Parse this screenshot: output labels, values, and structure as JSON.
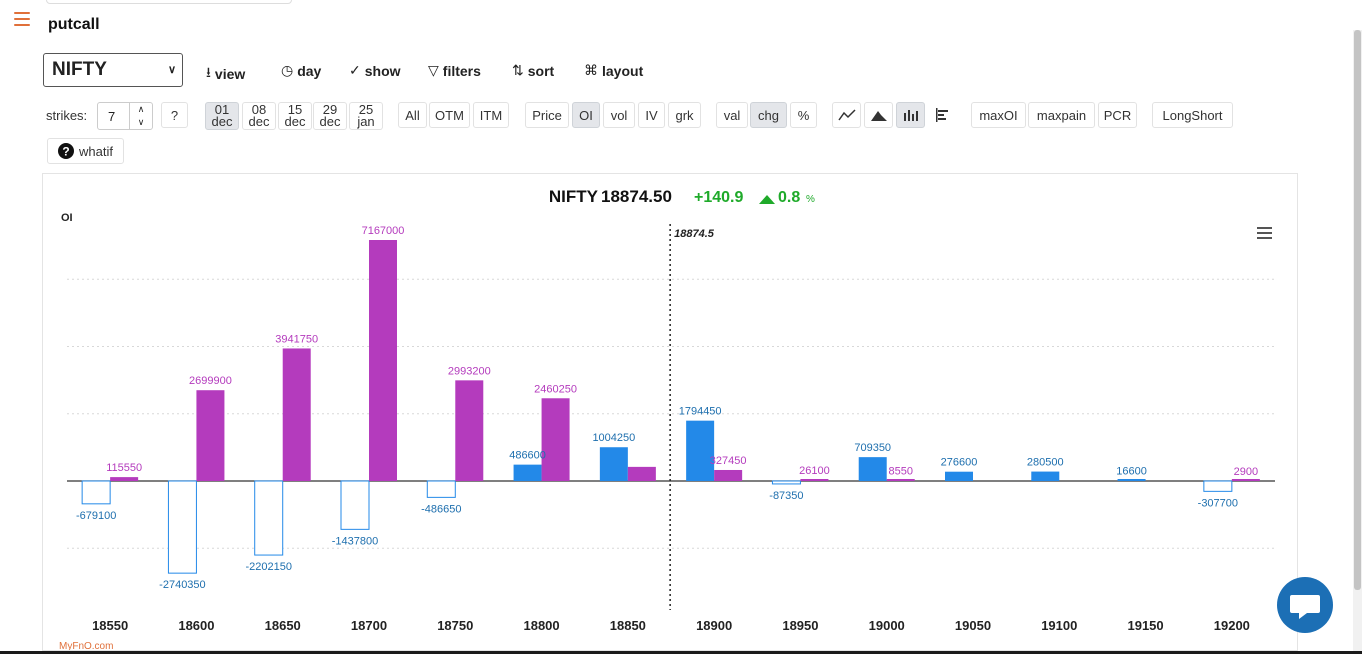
{
  "app": {
    "title": "putcall"
  },
  "symbol_select": {
    "value": "NIFTY"
  },
  "toolbar": {
    "view": "view",
    "day": "day",
    "show": "show",
    "filters": "filters",
    "sort": "sort",
    "layout": "layout"
  },
  "controls": {
    "strikes_label": "strikes:",
    "strikes_value": "7",
    "help": "?",
    "expiries": [
      {
        "d": "01",
        "m": "dec",
        "active": true
      },
      {
        "d": "08",
        "m": "dec",
        "active": false
      },
      {
        "d": "15",
        "m": "dec",
        "active": false
      },
      {
        "d": "29",
        "m": "dec",
        "active": false
      },
      {
        "d": "25",
        "m": "jan",
        "active": false
      }
    ],
    "moneyness": [
      "All",
      "OTM",
      "ITM"
    ],
    "metrics": [
      "Price",
      "OI",
      "vol",
      "IV",
      "grk"
    ],
    "metric_active": "OI",
    "modes": [
      "val",
      "chg",
      "%"
    ],
    "mode_active": "chg",
    "analysis": [
      "maxOI",
      "maxpain",
      "PCR"
    ],
    "longshort": "LongShort",
    "whatif": "whatif"
  },
  "colors": {
    "call": "#2389e8",
    "put": "#b43bbd",
    "positive": "#1faa2a",
    "accent": "#e0703a"
  },
  "chart_data": {
    "type": "bar",
    "symbol": "NIFTY",
    "spot": "18874.50",
    "change": "+140.9",
    "change_pct": "0.8",
    "pct_symbol": "%",
    "spot_marker": "18874.5",
    "ylabel": "OI",
    "categories": [
      "18550",
      "18600",
      "18650",
      "18700",
      "18750",
      "18800",
      "18850",
      "18900",
      "18950",
      "19000",
      "19050",
      "19100",
      "19150",
      "19200"
    ],
    "series": [
      {
        "values": [
          -679100,
          -2740350,
          -2202150,
          -1437800,
          -486650,
          486600,
          1004250,
          1794450,
          -87350,
          709350,
          276600,
          280500,
          16600,
          -307700
        ],
        "labels": [
          "-679100",
          "-2740350",
          "-2202150",
          "-1437800",
          "-486650",
          "486600",
          "1004250",
          "1794450",
          "-87350",
          "709350",
          "276600",
          "280500",
          "16600",
          "-307700"
        ]
      },
      {
        "values": [
          115550,
          2699900,
          3941750,
          7167000,
          2993200,
          2460250,
          420000,
          327450,
          26100,
          8550,
          0,
          0,
          0,
          2900
        ],
        "labels": [
          "115550",
          "2699900",
          "3941750",
          "7167000",
          "2993200",
          "2460250",
          "",
          "327450",
          "26100",
          "8550",
          "",
          "",
          "",
          "2900"
        ]
      }
    ],
    "ylim": [
      -4000000,
      7500000
    ],
    "watermark": "MyFnO.com"
  }
}
